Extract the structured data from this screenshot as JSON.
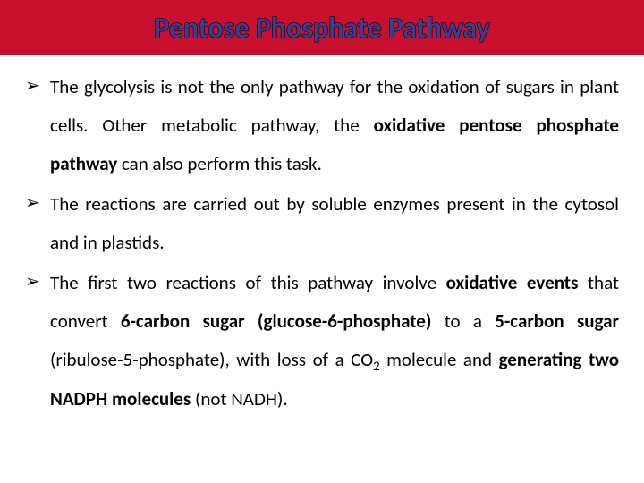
{
  "header": {
    "title": "Pentose Phosphate Pathway",
    "background_color": "#c8102e",
    "title_fill": "#3b3e8e",
    "title_stroke": "#000000",
    "title_fontsize": 32
  },
  "body": {
    "font_family": "Calibri, Arial, sans-serif",
    "text_color": "#000000",
    "fontsize": 21,
    "line_height": 2.05,
    "text_align": "justify"
  },
  "bullet": {
    "marker": "➢",
    "marker_color": "#000000"
  },
  "bullets": [
    {
      "segments": [
        {
          "text": "The glycolysis is not the only pathway for the oxidation of sugars in plant cells. Other metabolic pathway, the ",
          "bold": false
        },
        {
          "text": "oxidative pentose phosphate pathway",
          "bold": true
        },
        {
          "text": " can also perform this task.",
          "bold": false
        }
      ]
    },
    {
      "segments": [
        {
          "text": "The reactions are carried out by soluble enzymes present in the cytosol and in plastids.",
          "bold": false
        }
      ]
    },
    {
      "segments": [
        {
          "text": "The first two reactions of this pathway involve ",
          "bold": false
        },
        {
          "text": "oxidative events",
          "bold": true
        },
        {
          "text": " that convert ",
          "bold": false
        },
        {
          "text": "6-carbon sugar (glucose-6-phosphate)",
          "bold": true
        },
        {
          "text": " to a ",
          "bold": false
        },
        {
          "text": "5-carbon sugar",
          "bold": true
        },
        {
          "text": " (ribulose-5-phosphate), with loss of a CO",
          "bold": false
        },
        {
          "text": "2",
          "bold": false,
          "sub": true
        },
        {
          "text": " molecule and ",
          "bold": false
        },
        {
          "text": "generating two NADPH molecules",
          "bold": true
        },
        {
          "text": " (not NADH).",
          "bold": false
        }
      ]
    }
  ]
}
